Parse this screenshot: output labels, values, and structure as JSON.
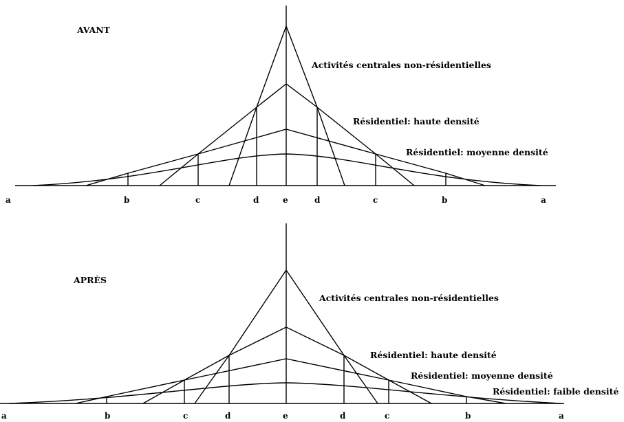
{
  "avant": {
    "title": "AVANT",
    "labels": {
      "central": "Activités centrales non-résidentielles",
      "haute": "Résidentiel: haute densité",
      "moyenne": "Résidentiel: moyenne densité"
    },
    "ticks": [
      "a",
      "b",
      "c",
      "d",
      "e",
      "d",
      "c",
      "b",
      "a"
    ]
  },
  "apres": {
    "title": "APRÈS",
    "labels": {
      "central": "Activités centrales non-résidentielles",
      "haute": "Résidentiel: haute densité",
      "moyenne": "Résidentiel: moyenne densité",
      "faible": "Résidentiel: faible densité"
    },
    "ticks": [
      "a",
      "b",
      "c",
      "d",
      "e",
      "d",
      "c",
      "b",
      "a"
    ]
  }
}
